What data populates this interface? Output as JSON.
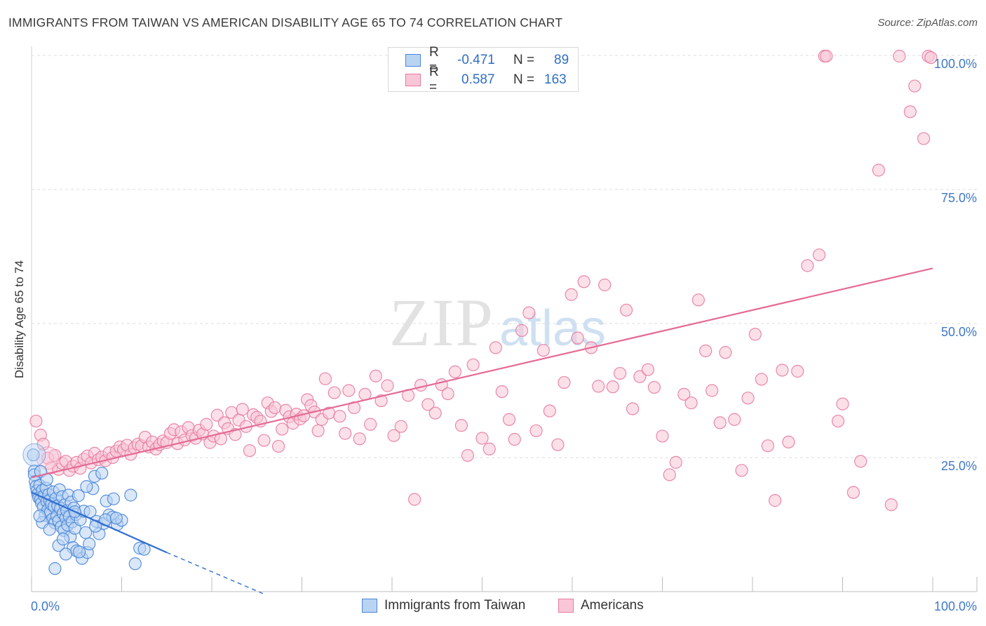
{
  "title": "IMMIGRANTS FROM TAIWAN VS AMERICAN DISABILITY AGE 65 TO 74 CORRELATION CHART",
  "source": "Source: ZipAtlas.com",
  "watermark": {
    "zip": "ZIP",
    "atlas": "atlas"
  },
  "legend_top": {
    "rows": [
      {
        "r_label": "R =",
        "r_value": "-0.471",
        "n_label": "N =",
        "n_value": "89",
        "color": "#4a86d8",
        "fill": "#b9d3f2"
      },
      {
        "r_label": "R =",
        "r_value": "0.587",
        "n_label": "N =",
        "n_value": "163",
        "color": "#e87ba0",
        "fill": "#f8c6d6"
      }
    ]
  },
  "legend_bottom": {
    "items": [
      {
        "label": "Immigrants from Taiwan",
        "color": "#4a86d8",
        "fill": "#b9d3f2"
      },
      {
        "label": "Americans",
        "color": "#e87ba0",
        "fill": "#f8c6d6"
      }
    ]
  },
  "chart_data": {
    "type": "scatter",
    "title": "IMMIGRANTS FROM TAIWAN VS AMERICAN DISABILITY AGE 65 TO 74 CORRELATION CHART",
    "xlabel": "",
    "ylabel": "Disability Age 65 to 74",
    "xlim": [
      0,
      100
    ],
    "ylim": [
      0,
      100
    ],
    "x_tick_labels": [
      "0.0%",
      "100.0%"
    ],
    "y_ticks": [
      25,
      50,
      75,
      100
    ],
    "y_tick_labels": [
      "25.0%",
      "50.0%",
      "75.0%",
      "100.0%"
    ],
    "grid": true,
    "series": [
      {
        "name": "Immigrants from Taiwan",
        "color": "#4a86d8",
        "fill": "#b9d3f2",
        "trend": {
          "x0": 0,
          "y0": 18.5,
          "x1": 15,
          "y1": 7.3,
          "dash_to_x": 26,
          "dash_to_y": -0.6
        },
        "points": [
          [
            0.2,
            25.5
          ],
          [
            0.3,
            22.5
          ],
          [
            0.3,
            21.8
          ],
          [
            0.4,
            20.5
          ],
          [
            0.5,
            19.6
          ],
          [
            0.6,
            18.8
          ],
          [
            0.7,
            18.2
          ],
          [
            0.8,
            17.5
          ],
          [
            0.9,
            19.8
          ],
          [
            1.0,
            17.2
          ],
          [
            1.0,
            22.4
          ],
          [
            1.1,
            16.5
          ],
          [
            1.2,
            18.9
          ],
          [
            1.3,
            15.8
          ],
          [
            1.4,
            17.9
          ],
          [
            1.5,
            14.2
          ],
          [
            1.6,
            19.3
          ],
          [
            1.7,
            16.8
          ],
          [
            1.8,
            15.2
          ],
          [
            1.9,
            18.1
          ],
          [
            2.0,
            17.0
          ],
          [
            2.1,
            14.8
          ],
          [
            2.2,
            16.3
          ],
          [
            2.3,
            13.5
          ],
          [
            2.4,
            18.6
          ],
          [
            2.5,
            15.9
          ],
          [
            2.6,
            12.8
          ],
          [
            2.7,
            17.4
          ],
          [
            2.8,
            14.1
          ],
          [
            2.9,
            16.0
          ],
          [
            3.0,
            13.2
          ],
          [
            3.1,
            19.0
          ],
          [
            3.2,
            15.5
          ],
          [
            3.3,
            12.1
          ],
          [
            3.4,
            17.7
          ],
          [
            3.5,
            14.6
          ],
          [
            3.6,
            11.4
          ],
          [
            3.7,
            16.2
          ],
          [
            3.8,
            13.8
          ],
          [
            3.9,
            15.1
          ],
          [
            4.0,
            12.4
          ],
          [
            4.1,
            18.0
          ],
          [
            4.2,
            14.0
          ],
          [
            4.3,
            10.2
          ],
          [
            4.4,
            16.7
          ],
          [
            4.5,
            13.0
          ],
          [
            4.6,
            8.2
          ],
          [
            4.7,
            15.6
          ],
          [
            4.8,
            11.8
          ],
          [
            4.9,
            14.4
          ],
          [
            5.0,
            7.6
          ],
          [
            5.2,
            17.9
          ],
          [
            5.4,
            13.4
          ],
          [
            5.6,
            6.2
          ],
          [
            5.8,
            15.0
          ],
          [
            6.0,
            11.0
          ],
          [
            6.2,
            7.3
          ],
          [
            6.5,
            14.9
          ],
          [
            6.8,
            19.2
          ],
          [
            7.0,
            21.5
          ],
          [
            7.2,
            13.1
          ],
          [
            7.5,
            10.8
          ],
          [
            7.8,
            22.1
          ],
          [
            8.0,
            12.7
          ],
          [
            8.3,
            16.9
          ],
          [
            8.6,
            14.3
          ],
          [
            9.0,
            13.9
          ],
          [
            9.5,
            12.5
          ],
          [
            10.0,
            13.3
          ],
          [
            11.0,
            18.0
          ],
          [
            11.5,
            5.2
          ],
          [
            12.0,
            8.1
          ],
          [
            12.5,
            7.9
          ],
          [
            1.2,
            12.9
          ],
          [
            2.0,
            11.6
          ],
          [
            3.0,
            8.6
          ],
          [
            3.5,
            9.8
          ],
          [
            5.3,
            7.4
          ],
          [
            6.4,
            8.9
          ],
          [
            7.1,
            12.2
          ],
          [
            8.2,
            13.4
          ],
          [
            9.1,
            17.3
          ],
          [
            9.4,
            13.7
          ],
          [
            2.6,
            4.3
          ],
          [
            4.8,
            14.9
          ],
          [
            6.1,
            19.6
          ],
          [
            1.7,
            20.9
          ],
          [
            0.9,
            14.1
          ],
          [
            3.8,
            7.0
          ]
        ],
        "big_points": [
          [
            0.3,
            25.5
          ]
        ]
      },
      {
        "name": "Americans",
        "color": "#e87ba0",
        "fill": "#f8c6d6",
        "trend": {
          "x0": 0,
          "y0": 21.3,
          "x1": 100,
          "y1": 60.3
        },
        "points": [
          [
            0.5,
            31.8
          ],
          [
            1.0,
            29.2
          ],
          [
            1.3,
            27.5
          ],
          [
            1.8,
            24.9
          ],
          [
            2.2,
            23.1
          ],
          [
            2.6,
            25.4
          ],
          [
            3.0,
            22.8
          ],
          [
            3.4,
            23.9
          ],
          [
            3.8,
            24.3
          ],
          [
            4.2,
            22.6
          ],
          [
            4.6,
            23.4
          ],
          [
            5.0,
            24.1
          ],
          [
            5.4,
            23.0
          ],
          [
            5.8,
            24.7
          ],
          [
            6.2,
            25.3
          ],
          [
            6.6,
            24.0
          ],
          [
            7.0,
            25.8
          ],
          [
            7.4,
            24.6
          ],
          [
            7.8,
            25.1
          ],
          [
            8.2,
            24.4
          ],
          [
            8.6,
            25.9
          ],
          [
            9.0,
            25.0
          ],
          [
            9.4,
            26.2
          ],
          [
            9.8,
            27.0
          ],
          [
            10.2,
            26.5
          ],
          [
            10.6,
            27.3
          ],
          [
            11.0,
            25.6
          ],
          [
            11.4,
            26.8
          ],
          [
            11.8,
            27.5
          ],
          [
            12.2,
            27.2
          ],
          [
            12.6,
            28.8
          ],
          [
            13.0,
            27.0
          ],
          [
            13.4,
            27.9
          ],
          [
            13.8,
            26.6
          ],
          [
            14.2,
            27.4
          ],
          [
            14.6,
            28.1
          ],
          [
            15.0,
            27.8
          ],
          [
            15.4,
            29.5
          ],
          [
            15.8,
            30.2
          ],
          [
            16.2,
            27.6
          ],
          [
            16.6,
            29.8
          ],
          [
            17.0,
            28.3
          ],
          [
            17.4,
            30.6
          ],
          [
            17.8,
            29.1
          ],
          [
            18.2,
            28.6
          ],
          [
            18.6,
            30.1
          ],
          [
            19.0,
            29.4
          ],
          [
            19.4,
            31.2
          ],
          [
            19.8,
            27.8
          ],
          [
            20.2,
            29.0
          ],
          [
            20.6,
            32.9
          ],
          [
            21.0,
            28.5
          ],
          [
            21.4,
            31.5
          ],
          [
            21.8,
            30.4
          ],
          [
            22.2,
            33.4
          ],
          [
            22.6,
            29.3
          ],
          [
            23.0,
            32.0
          ],
          [
            23.4,
            34.0
          ],
          [
            23.8,
            30.8
          ],
          [
            24.2,
            26.3
          ],
          [
            24.6,
            33.0
          ],
          [
            25.0,
            32.5
          ],
          [
            25.4,
            31.8
          ],
          [
            25.8,
            28.2
          ],
          [
            26.2,
            35.2
          ],
          [
            26.6,
            33.6
          ],
          [
            27.0,
            34.3
          ],
          [
            27.4,
            27.1
          ],
          [
            27.8,
            30.3
          ],
          [
            28.2,
            33.8
          ],
          [
            28.6,
            32.6
          ],
          [
            29.0,
            31.4
          ],
          [
            29.4,
            33.1
          ],
          [
            29.8,
            32.2
          ],
          [
            30.2,
            32.8
          ],
          [
            30.6,
            35.8
          ],
          [
            31.0,
            34.7
          ],
          [
            31.4,
            33.5
          ],
          [
            31.8,
            30.0
          ],
          [
            32.2,
            32.1
          ],
          [
            32.6,
            39.7
          ],
          [
            33.0,
            33.3
          ],
          [
            33.6,
            37.1
          ],
          [
            34.2,
            32.7
          ],
          [
            34.8,
            29.5
          ],
          [
            35.2,
            37.5
          ],
          [
            35.8,
            34.3
          ],
          [
            36.4,
            28.5
          ],
          [
            37.0,
            36.8
          ],
          [
            37.6,
            31.2
          ],
          [
            38.2,
            40.2
          ],
          [
            38.8,
            35.6
          ],
          [
            39.5,
            38.4
          ],
          [
            40.2,
            29.1
          ],
          [
            41.0,
            30.8
          ],
          [
            41.8,
            36.6
          ],
          [
            42.5,
            17.2
          ],
          [
            43.2,
            38.5
          ],
          [
            44.0,
            34.9
          ],
          [
            44.8,
            33.3
          ],
          [
            45.5,
            38.6
          ],
          [
            46.2,
            36.9
          ],
          [
            47.0,
            41.0
          ],
          [
            47.7,
            31.0
          ],
          [
            48.4,
            25.4
          ],
          [
            49.0,
            42.3
          ],
          [
            50.0,
            28.6
          ],
          [
            50.8,
            26.6
          ],
          [
            51.5,
            45.5
          ],
          [
            52.2,
            37.3
          ],
          [
            53.0,
            32.1
          ],
          [
            53.6,
            28.4
          ],
          [
            54.4,
            48.7
          ],
          [
            55.2,
            52.0
          ],
          [
            56.0,
            30.0
          ],
          [
            56.8,
            45.0
          ],
          [
            57.5,
            33.7
          ],
          [
            58.4,
            27.4
          ],
          [
            59.1,
            39.0
          ],
          [
            59.9,
            55.4
          ],
          [
            60.6,
            47.3
          ],
          [
            61.3,
            57.8
          ],
          [
            62.1,
            45.5
          ],
          [
            62.9,
            38.3
          ],
          [
            63.6,
            57.2
          ],
          [
            64.5,
            38.2
          ],
          [
            65.3,
            40.7
          ],
          [
            66.0,
            52.5
          ],
          [
            66.7,
            34.1
          ],
          [
            67.5,
            40.1
          ],
          [
            68.4,
            41.4
          ],
          [
            69.1,
            38.1
          ],
          [
            70.0,
            29.0
          ],
          [
            70.8,
            21.8
          ],
          [
            71.5,
            24.1
          ],
          [
            72.4,
            36.8
          ],
          [
            73.2,
            35.2
          ],
          [
            74.0,
            54.4
          ],
          [
            74.8,
            44.9
          ],
          [
            75.5,
            37.5
          ],
          [
            76.4,
            31.5
          ],
          [
            77.0,
            44.6
          ],
          [
            78.0,
            32.1
          ],
          [
            78.8,
            22.6
          ],
          [
            79.5,
            36.1
          ],
          [
            80.3,
            48.0
          ],
          [
            81.0,
            39.6
          ],
          [
            81.7,
            27.2
          ],
          [
            82.5,
            17.0
          ],
          [
            83.3,
            41.3
          ],
          [
            84.0,
            27.9
          ],
          [
            85.0,
            41.1
          ],
          [
            86.1,
            60.8
          ],
          [
            87.4,
            62.8
          ],
          [
            88.0,
            100.0
          ],
          [
            88.2,
            100.0
          ],
          [
            89.5,
            31.8
          ],
          [
            90.0,
            35.0
          ],
          [
            91.2,
            18.5
          ],
          [
            92.0,
            24.3
          ],
          [
            94.0,
            78.6
          ],
          [
            95.4,
            16.2
          ],
          [
            96.3,
            100.0
          ],
          [
            97.5,
            89.5
          ],
          [
            98.0,
            94.3
          ],
          [
            99.0,
            84.5
          ],
          [
            99.5,
            99.9
          ],
          [
            99.8,
            99.6
          ]
        ],
        "big_points": [
          [
            1.8,
            24.9
          ]
        ]
      }
    ]
  }
}
